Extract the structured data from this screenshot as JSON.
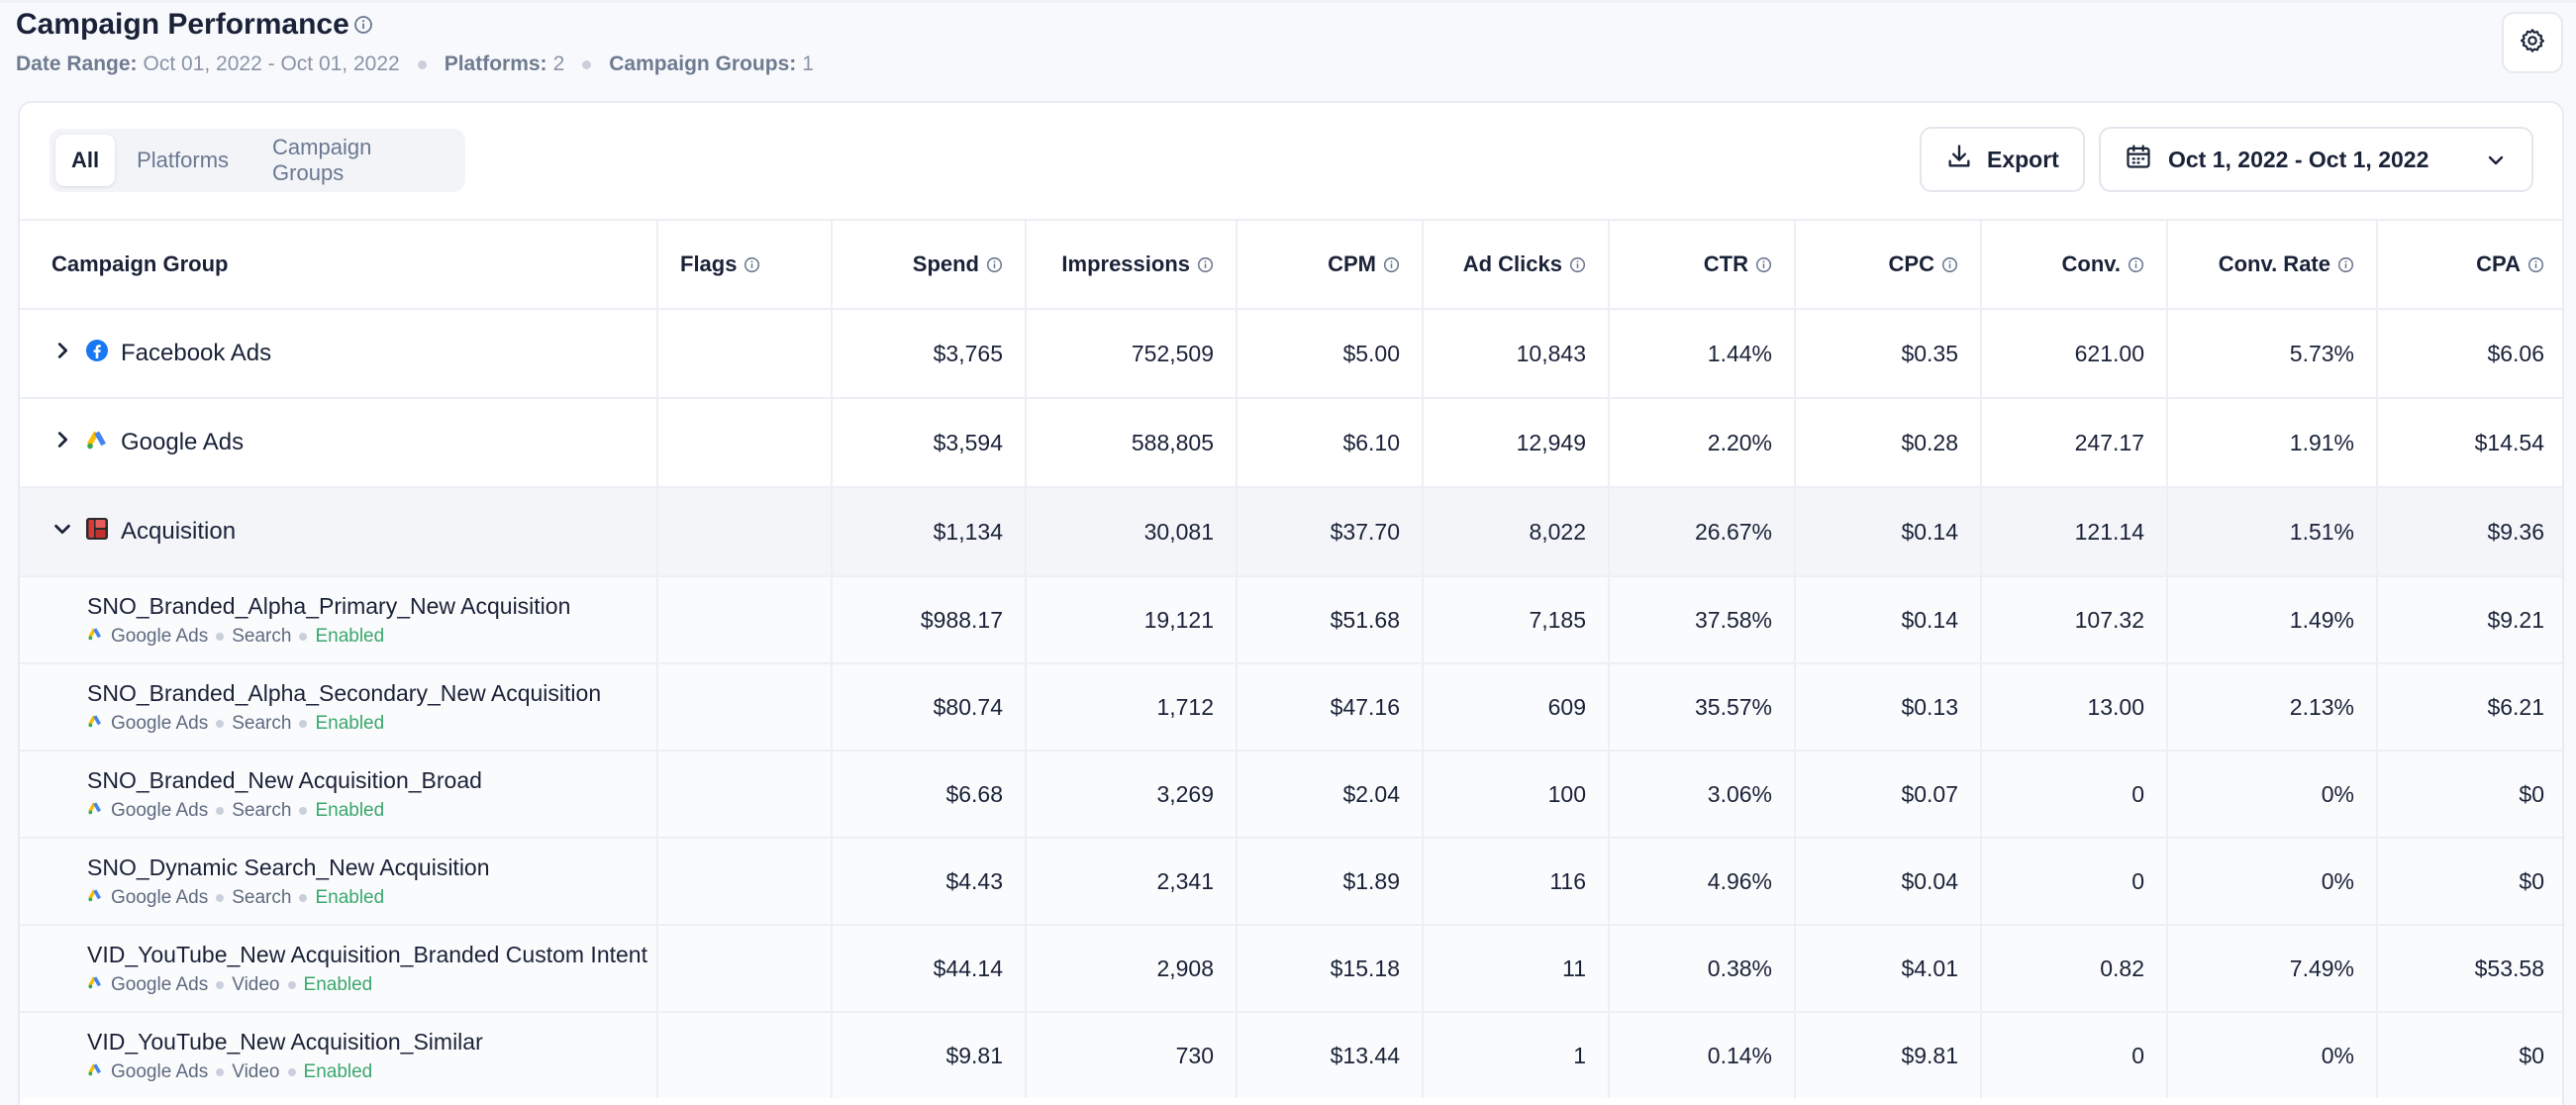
{
  "header": {
    "title": "Campaign Performance",
    "meta": [
      {
        "key": "Date Range:",
        "value": "Oct 01, 2022 - Oct 01, 2022"
      },
      {
        "key": "Platforms:",
        "value": "2"
      },
      {
        "key": "Campaign Groups:",
        "value": "1"
      }
    ]
  },
  "tabs": [
    "All",
    "Platforms",
    "Campaign Groups"
  ],
  "toolbar": {
    "export_label": "Export",
    "date_range_label": "Oct 1, 2022 - Oct 1, 2022"
  },
  "table": {
    "columns": [
      "Campaign Group",
      "Flags",
      "Spend",
      "Impressions",
      "CPM",
      "Ad Clicks",
      "CTR",
      "CPC",
      "Conv.",
      "Conv. Rate",
      "CPA"
    ],
    "groups": [
      {
        "name": "Facebook Ads",
        "icon": "facebook-icon",
        "expanded": false,
        "values": [
          "$3,765",
          "752,509",
          "$5.00",
          "10,843",
          "1.44%",
          "$0.35",
          "621.00",
          "5.73%",
          "$6.06"
        ]
      },
      {
        "name": "Google Ads",
        "icon": "google-ads-icon",
        "expanded": false,
        "values": [
          "$3,594",
          "588,805",
          "$6.10",
          "12,949",
          "2.20%",
          "$0.28",
          "247.17",
          "1.91%",
          "$14.54"
        ]
      },
      {
        "name": "Acquisition",
        "icon": "campaign-group-icon",
        "expanded": true,
        "values": [
          "$1,134",
          "30,081",
          "$37.70",
          "8,022",
          "26.67%",
          "$0.14",
          "121.14",
          "1.51%",
          "$9.36"
        ]
      }
    ],
    "campaigns": [
      {
        "name": "SNO_Branded_Alpha_Primary_New Acquisition",
        "platform": "Google Ads",
        "type": "Search",
        "status": "Enabled",
        "values": [
          "$988.17",
          "19,121",
          "$51.68",
          "7,185",
          "37.58%",
          "$0.14",
          "107.32",
          "1.49%",
          "$9.21"
        ]
      },
      {
        "name": "SNO_Branded_Alpha_Secondary_New Acquisition",
        "platform": "Google Ads",
        "type": "Search",
        "status": "Enabled",
        "values": [
          "$80.74",
          "1,712",
          "$47.16",
          "609",
          "35.57%",
          "$0.13",
          "13.00",
          "2.13%",
          "$6.21"
        ]
      },
      {
        "name": "SNO_Branded_New Acquisition_Broad",
        "platform": "Google Ads",
        "type": "Search",
        "status": "Enabled",
        "values": [
          "$6.68",
          "3,269",
          "$2.04",
          "100",
          "3.06%",
          "$0.07",
          "0",
          "0%",
          "$0"
        ]
      },
      {
        "name": "SNO_Dynamic Search_New Acquisition",
        "platform": "Google Ads",
        "type": "Search",
        "status": "Enabled",
        "values": [
          "$4.43",
          "2,341",
          "$1.89",
          "116",
          "4.96%",
          "$0.04",
          "0",
          "0%",
          "$0"
        ]
      },
      {
        "name": "VID_YouTube_New Acquisition_Branded Custom Intent",
        "platform": "Google Ads",
        "type": "Video",
        "status": "Enabled",
        "values": [
          "$44.14",
          "2,908",
          "$15.18",
          "11",
          "0.38%",
          "$4.01",
          "0.82",
          "7.49%",
          "$53.58"
        ]
      },
      {
        "name": "VID_YouTube_New Acquisition_Similar",
        "platform": "Google Ads",
        "type": "Video",
        "status": "Enabled",
        "values": [
          "$9.81",
          "730",
          "$13.44",
          "1",
          "0.14%",
          "$9.81",
          "0",
          "0%",
          "$0"
        ]
      }
    ]
  },
  "colors": {
    "accent": "#1a2238",
    "enabled": "#3aa76d",
    "facebook": "#1877f2",
    "acquisition": "#d63b3b"
  }
}
